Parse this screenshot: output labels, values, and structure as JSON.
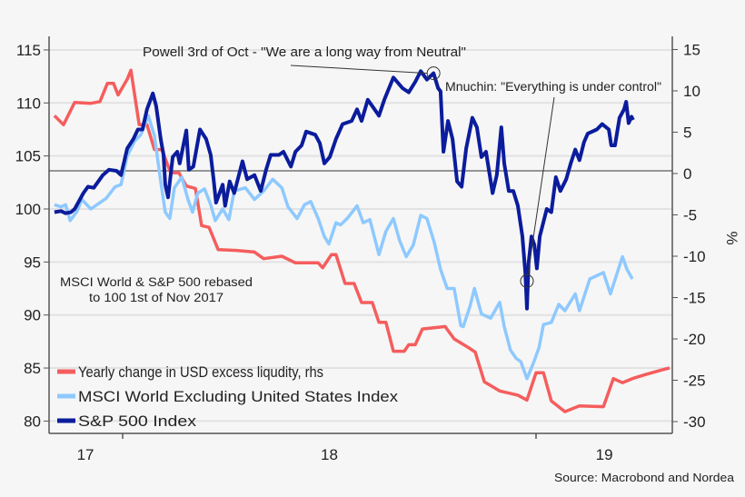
{
  "chart_data": {
    "type": "line",
    "x_unit": "year",
    "x_ticks": [
      2018,
      2019
    ],
    "x_tick_labels": [
      {
        "label": "17",
        "at": 2017.91
      },
      {
        "label": "18",
        "at": 2018.5
      },
      {
        "label": "19",
        "at": 2019.165
      }
    ],
    "xlim": [
      2017.82,
      2019.33
    ],
    "left_axis": {
      "ylim": [
        80,
        115
      ],
      "ticks": [
        80,
        85,
        90,
        95,
        100,
        105,
        110,
        115
      ]
    },
    "right_axis": {
      "ylim": [
        -30,
        15
      ],
      "ticks": [
        -30,
        -25,
        -20,
        -15,
        -10,
        -5,
        0,
        5,
        10,
        15
      ],
      "label": "%"
    },
    "grid": true,
    "zero_line_rhs": 0,
    "legend_placement": "bottom-left",
    "series": [
      {
        "name": "Yearly change in USD excess liqudity, rhs",
        "axis": "right",
        "color": "#f55d5d",
        "points": [
          [
            2017.835,
            7.0
          ],
          [
            2017.857,
            5.9
          ],
          [
            2017.884,
            8.6
          ],
          [
            2017.923,
            8.5
          ],
          [
            2017.945,
            8.7
          ],
          [
            2017.963,
            10.9
          ],
          [
            2017.978,
            10.9
          ],
          [
            2017.989,
            9.5
          ],
          [
            2018.011,
            11.4
          ],
          [
            2018.02,
            12.5
          ],
          [
            2018.04,
            5.9
          ],
          [
            2018.059,
            5.9
          ],
          [
            2018.077,
            2.9
          ],
          [
            2018.095,
            2.9
          ],
          [
            2018.116,
            0.1
          ],
          [
            2018.136,
            0.1
          ],
          [
            2018.154,
            -1.5
          ],
          [
            2018.176,
            -1.8
          ],
          [
            2018.191,
            -6.3
          ],
          [
            2018.209,
            -6.5
          ],
          [
            2018.231,
            -9.2
          ],
          [
            2018.275,
            -9.3
          ],
          [
            2018.319,
            -9.5
          ],
          [
            2018.341,
            -10.3
          ],
          [
            2018.385,
            -10.0
          ],
          [
            2018.418,
            -10.8
          ],
          [
            2018.473,
            -10.8
          ],
          [
            2018.484,
            -11.4
          ],
          [
            2018.505,
            -9.8
          ],
          [
            2018.516,
            -9.8
          ],
          [
            2018.538,
            -13.3
          ],
          [
            2018.56,
            -13.3
          ],
          [
            2018.578,
            -15.6
          ],
          [
            2018.604,
            -15.6
          ],
          [
            2018.62,
            -18.0
          ],
          [
            2018.637,
            -18.0
          ],
          [
            2018.655,
            -21.5
          ],
          [
            2018.681,
            -21.5
          ],
          [
            2018.692,
            -20.7
          ],
          [
            2018.708,
            -20.7
          ],
          [
            2018.725,
            -18.8
          ],
          [
            2018.78,
            -18.5
          ],
          [
            2018.802,
            -20.0
          ],
          [
            2018.835,
            -21.0
          ],
          [
            2018.853,
            -21.6
          ],
          [
            2018.875,
            -25.2
          ],
          [
            2018.912,
            -26.3
          ],
          [
            2018.956,
            -26.8
          ],
          [
            2018.978,
            -27.4
          ],
          [
            2019.0,
            -24.1
          ],
          [
            2019.018,
            -24.1
          ],
          [
            2019.037,
            -27.5
          ],
          [
            2019.07,
            -28.8
          ],
          [
            2019.105,
            -28.1
          ],
          [
            2019.163,
            -28.2
          ],
          [
            2019.187,
            -24.8
          ],
          [
            2019.209,
            -25.3
          ],
          [
            2019.233,
            -24.8
          ],
          [
            2019.266,
            -24.3
          ],
          [
            2019.301,
            -23.8
          ],
          [
            2019.323,
            -23.5
          ]
        ]
      },
      {
        "name": "MSCI World Excluding United States Index",
        "axis": "left",
        "color": "#8ec9ff",
        "points": [
          [
            2017.835,
            100.4
          ],
          [
            2017.851,
            100.2
          ],
          [
            2017.862,
            100.4
          ],
          [
            2017.873,
            98.9
          ],
          [
            2017.89,
            99.8
          ],
          [
            2017.901,
            100.9
          ],
          [
            2017.923,
            100.0
          ],
          [
            2017.96,
            101.0
          ],
          [
            2017.982,
            102.1
          ],
          [
            2017.996,
            102.3
          ],
          [
            2018.011,
            105.0
          ],
          [
            2018.029,
            106.4
          ],
          [
            2018.044,
            107.0
          ],
          [
            2018.062,
            108.8
          ],
          [
            2018.077,
            106.9
          ],
          [
            2018.092,
            102.6
          ],
          [
            2018.103,
            99.7
          ],
          [
            2018.114,
            99.1
          ],
          [
            2018.125,
            102.0
          ],
          [
            2018.143,
            103.0
          ],
          [
            2018.158,
            100.9
          ],
          [
            2018.169,
            99.7
          ],
          [
            2018.182,
            101.5
          ],
          [
            2018.198,
            101.9
          ],
          [
            2018.213,
            100.4
          ],
          [
            2018.224,
            98.9
          ],
          [
            2018.242,
            100.0
          ],
          [
            2018.257,
            99.0
          ],
          [
            2018.27,
            101.7
          ],
          [
            2018.297,
            102.0
          ],
          [
            2018.319,
            100.9
          ],
          [
            2018.341,
            101.7
          ],
          [
            2018.363,
            102.8
          ],
          [
            2018.385,
            102.0
          ],
          [
            2018.4,
            100.2
          ],
          [
            2018.422,
            99.1
          ],
          [
            2018.44,
            100.4
          ],
          [
            2018.455,
            100.7
          ],
          [
            2018.473,
            99.1
          ],
          [
            2018.488,
            97.4
          ],
          [
            2018.499,
            96.7
          ],
          [
            2018.516,
            98.7
          ],
          [
            2018.527,
            98.5
          ],
          [
            2018.543,
            99.1
          ],
          [
            2018.567,
            100.3
          ],
          [
            2018.582,
            98.7
          ],
          [
            2018.598,
            99.0
          ],
          [
            2018.62,
            95.7
          ],
          [
            2018.637,
            97.9
          ],
          [
            2018.655,
            99.1
          ],
          [
            2018.67,
            97.0
          ],
          [
            2018.686,
            95.5
          ],
          [
            2018.703,
            96.6
          ],
          [
            2018.721,
            99.4
          ],
          [
            2018.736,
            99.1
          ],
          [
            2018.754,
            96.8
          ],
          [
            2018.769,
            94.3
          ],
          [
            2018.785,
            92.5
          ],
          [
            2018.802,
            92.5
          ],
          [
            2018.818,
            89.0
          ],
          [
            2018.824,
            88.9
          ],
          [
            2018.84,
            90.8
          ],
          [
            2018.851,
            92.5
          ],
          [
            2018.868,
            90.1
          ],
          [
            2018.89,
            89.7
          ],
          [
            2018.912,
            91.2
          ],
          [
            2018.923,
            88.9
          ],
          [
            2018.938,
            86.7
          ],
          [
            2018.952,
            85.9
          ],
          [
            2018.963,
            85.6
          ],
          [
            2018.978,
            84.0
          ],
          [
            2018.993,
            85.4
          ],
          [
            2019.007,
            86.9
          ],
          [
            2019.018,
            89.1
          ],
          [
            2019.037,
            89.3
          ],
          [
            2019.055,
            91.0
          ],
          [
            2019.07,
            90.4
          ],
          [
            2019.095,
            92.0
          ],
          [
            2019.105,
            90.4
          ],
          [
            2019.13,
            93.4
          ],
          [
            2019.163,
            94.0
          ],
          [
            2019.18,
            92.0
          ],
          [
            2019.209,
            95.5
          ],
          [
            2019.22,
            94.3
          ],
          [
            2019.233,
            93.4
          ]
        ]
      },
      {
        "name": "S&P 500 Index",
        "axis": "left",
        "color": "#0b1c9c",
        "points": [
          [
            2017.835,
            99.7
          ],
          [
            2017.851,
            99.8
          ],
          [
            2017.862,
            99.6
          ],
          [
            2017.875,
            99.7
          ],
          [
            2017.884,
            100.0
          ],
          [
            2017.905,
            101.5
          ],
          [
            2017.916,
            102.1
          ],
          [
            2017.93,
            102.0
          ],
          [
            2017.952,
            103.2
          ],
          [
            2017.967,
            103.7
          ],
          [
            2017.985,
            103.6
          ],
          [
            2017.996,
            103.2
          ],
          [
            2018.011,
            105.7
          ],
          [
            2018.026,
            106.6
          ],
          [
            2018.037,
            107.5
          ],
          [
            2018.048,
            107.5
          ],
          [
            2018.059,
            109.4
          ],
          [
            2018.073,
            110.9
          ],
          [
            2018.081,
            109.7
          ],
          [
            2018.092,
            106.6
          ],
          [
            2018.099,
            105.1
          ],
          [
            2018.103,
            102.3
          ],
          [
            2018.11,
            101.1
          ],
          [
            2018.121,
            104.9
          ],
          [
            2018.132,
            105.4
          ],
          [
            2018.138,
            104.3
          ],
          [
            2018.154,
            107.4
          ],
          [
            2018.16,
            103.7
          ],
          [
            2018.171,
            104.0
          ],
          [
            2018.187,
            107.5
          ],
          [
            2018.202,
            106.6
          ],
          [
            2018.213,
            105.1
          ],
          [
            2018.22,
            102.8
          ],
          [
            2018.226,
            100.6
          ],
          [
            2018.242,
            102.3
          ],
          [
            2018.248,
            100.3
          ],
          [
            2018.259,
            102.6
          ],
          [
            2018.27,
            101.5
          ],
          [
            2018.29,
            104.5
          ],
          [
            2018.301,
            102.8
          ],
          [
            2018.319,
            103.2
          ],
          [
            2018.334,
            101.7
          ],
          [
            2018.347,
            103.7
          ],
          [
            2018.358,
            105.1
          ],
          [
            2018.378,
            105.1
          ],
          [
            2018.389,
            105.4
          ],
          [
            2018.407,
            104.0
          ],
          [
            2018.418,
            105.4
          ],
          [
            2018.433,
            106.0
          ],
          [
            2018.444,
            107.3
          ],
          [
            2018.466,
            107.0
          ],
          [
            2018.477,
            106.2
          ],
          [
            2018.488,
            104.3
          ],
          [
            2018.501,
            104.9
          ],
          [
            2018.516,
            106.6
          ],
          [
            2018.532,
            108.0
          ],
          [
            2018.554,
            108.3
          ],
          [
            2018.567,
            109.4
          ],
          [
            2018.578,
            108.3
          ],
          [
            2018.593,
            110.3
          ],
          [
            2018.604,
            109.7
          ],
          [
            2018.62,
            108.8
          ],
          [
            2018.633,
            110.3
          ],
          [
            2018.655,
            112.4
          ],
          [
            2018.677,
            111.4
          ],
          [
            2018.692,
            111.0
          ],
          [
            2018.708,
            112.0
          ],
          [
            2018.721,
            113.0
          ],
          [
            2018.736,
            112.2
          ],
          [
            2018.752,
            112.8
          ],
          [
            2018.763,
            111.4
          ],
          [
            2018.769,
            111.1
          ],
          [
            2018.776,
            105.4
          ],
          [
            2018.787,
            108.3
          ],
          [
            2018.798,
            106.6
          ],
          [
            2018.809,
            102.6
          ],
          [
            2018.82,
            102.1
          ],
          [
            2018.831,
            105.7
          ],
          [
            2018.846,
            108.6
          ],
          [
            2018.857,
            107.7
          ],
          [
            2018.868,
            104.9
          ],
          [
            2018.879,
            105.4
          ],
          [
            2018.895,
            101.5
          ],
          [
            2018.905,
            103.2
          ],
          [
            2018.916,
            107.7
          ],
          [
            2018.923,
            104.3
          ],
          [
            2018.934,
            101.7
          ],
          [
            2018.945,
            101.7
          ],
          [
            2018.956,
            100.3
          ],
          [
            2018.967,
            97.4
          ],
          [
            2018.974,
            94.0
          ],
          [
            2018.978,
            90.6
          ],
          [
            2018.982,
            94.9
          ],
          [
            2018.989,
            97.4
          ],
          [
            2018.996,
            96.6
          ],
          [
            2019.002,
            94.4
          ],
          [
            2019.009,
            97.4
          ],
          [
            2019.026,
            100.0
          ],
          [
            2019.037,
            99.7
          ],
          [
            2019.048,
            103.0
          ],
          [
            2019.059,
            101.7
          ],
          [
            2019.073,
            102.8
          ],
          [
            2019.084,
            104.3
          ],
          [
            2019.095,
            105.6
          ],
          [
            2019.105,
            104.6
          ],
          [
            2019.116,
            106.3
          ],
          [
            2019.125,
            107.1
          ],
          [
            2019.147,
            107.5
          ],
          [
            2019.16,
            108.0
          ],
          [
            2019.176,
            107.5
          ],
          [
            2019.182,
            106.0
          ],
          [
            2019.191,
            106.0
          ],
          [
            2019.202,
            108.6
          ],
          [
            2019.213,
            109.4
          ],
          [
            2019.218,
            110.1
          ],
          [
            2019.224,
            108.1
          ],
          [
            2019.231,
            108.7
          ],
          [
            2019.235,
            108.4
          ]
        ]
      }
    ],
    "annotations": [
      {
        "text": "Powell 3rd of Oct - \"We are a long way from Neutral\"",
        "series": "S&P 500 Index",
        "x": 2018.752,
        "y": 112.8
      },
      {
        "text": "Mnuchin: \"Everything is under control\"",
        "series": "S&P 500 Index",
        "x": 2018.978,
        "y": 93.2
      }
    ],
    "note": [
      "MSCI World & S&P 500 rebased",
      "to 100 1st of Nov 2017"
    ],
    "source": "Source: Macrobond and Nordea"
  }
}
